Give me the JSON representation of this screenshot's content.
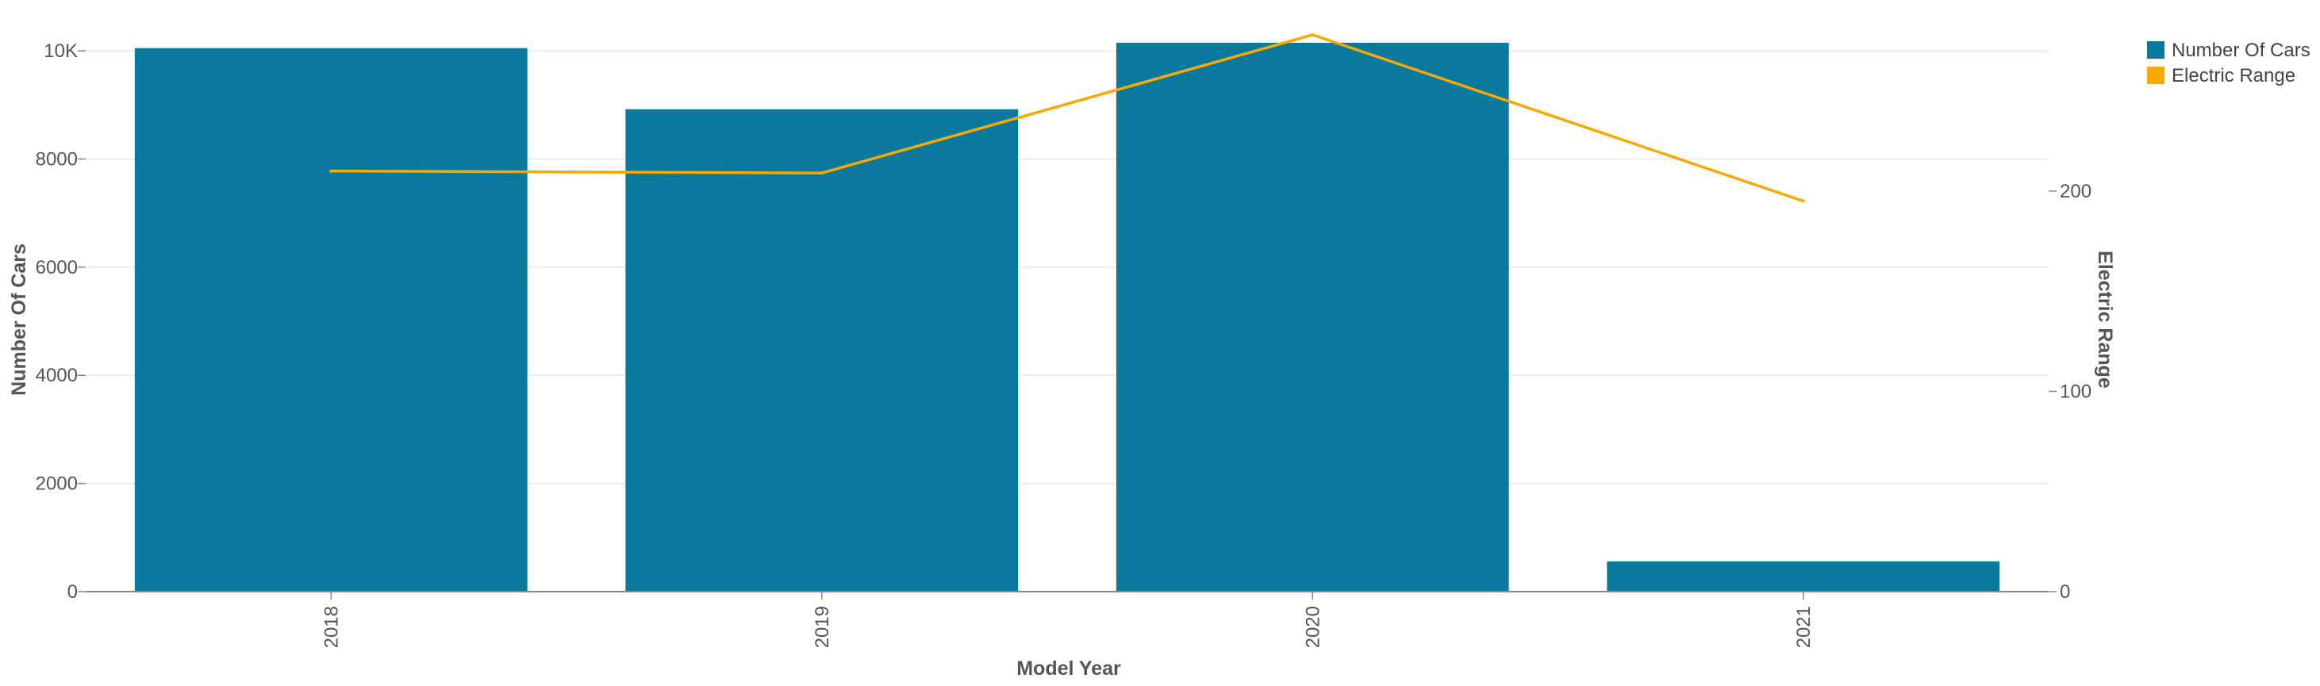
{
  "chart_data": {
    "type": "bar",
    "categories": [
      "2018",
      "2019",
      "2020",
      "2021"
    ],
    "series": [
      {
        "name": "Number Of Cars",
        "type": "bar",
        "axis": "left",
        "color": "#0a799e",
        "values": [
          10050,
          8920,
          10150,
          560
        ]
      },
      {
        "name": "Electric Range",
        "type": "line",
        "axis": "right",
        "color": "#f9a800",
        "values": [
          210,
          209,
          278,
          195
        ]
      }
    ],
    "xlabel": "Model Year",
    "ylabel": "Number Of Cars",
    "y2label": "Electric Range",
    "ylim": [
      0,
      10500
    ],
    "y2lim": [
      0,
      283.5
    ],
    "yticks": [
      {
        "value": 0,
        "label": "0"
      },
      {
        "value": 2000,
        "label": "2000"
      },
      {
        "value": 4000,
        "label": "4000"
      },
      {
        "value": 6000,
        "label": "6000"
      },
      {
        "value": 8000,
        "label": "8000"
      },
      {
        "value": 10000,
        "label": "10K"
      }
    ],
    "y2ticks": [
      {
        "value": 0,
        "label": "0"
      },
      {
        "value": 100,
        "label": "100"
      },
      {
        "value": 200,
        "label": "200"
      }
    ],
    "grid": true,
    "legend": "top-right"
  }
}
